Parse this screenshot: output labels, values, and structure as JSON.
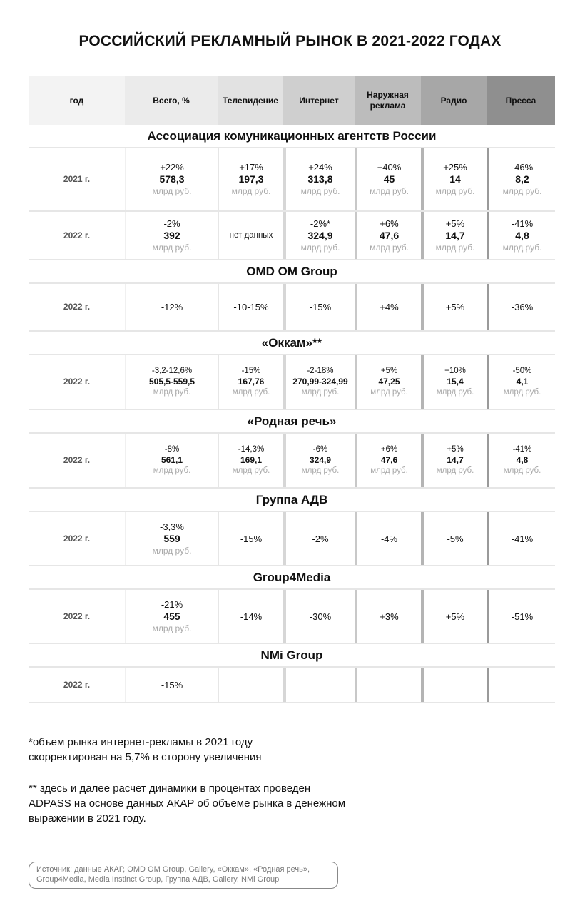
{
  "title": "РОССИЙСКИЙ РЕКЛАМНЫЙ РЫНОК В 2021-2022 ГОДАХ",
  "header": [
    "год",
    "Всего, %",
    "Телевидение",
    "Интернет",
    "Наружная реклама",
    "Радио",
    "Пресса"
  ],
  "header_colors": [
    "#f3f3f3",
    "#ebebeb",
    "#e2e2e2",
    "#cfcfcf",
    "#bcbcbc",
    "#a7a7a7",
    "#8f8f8f"
  ],
  "unit": "млрд руб.",
  "sections": [
    {
      "name": "Ассоциация комуникационных агентств России",
      "rows": [
        {
          "year": "2021 г.",
          "cells": [
            [
              "+22%",
              "578,3",
              true
            ],
            [
              "+17%",
              "197,3",
              true
            ],
            [
              "+24%",
              "313,8",
              true
            ],
            [
              "+40%",
              "45",
              true
            ],
            [
              "+25%",
              "14",
              true
            ],
            [
              "-46%",
              "8,2",
              true
            ]
          ]
        },
        {
          "year": "2022 г.",
          "cells": [
            [
              "-2%",
              "392",
              true
            ],
            [
              "нет данных",
              "",
              false
            ],
            [
              "-2%*",
              "324,9",
              true
            ],
            [
              "+6%",
              "47,6",
              true
            ],
            [
              "+5%",
              "14,7",
              true
            ],
            [
              "-41%",
              "4,8",
              true
            ]
          ]
        }
      ]
    },
    {
      "name": "OMD OM Group",
      "rows": [
        {
          "year": "2022 г.",
          "cells": [
            [
              "-12%",
              "",
              false
            ],
            [
              "-10-15%",
              "",
              false
            ],
            [
              "-15%",
              "",
              false
            ],
            [
              "+4%",
              "",
              false
            ],
            [
              "+5%",
              "",
              false
            ],
            [
              "-36%",
              "",
              false
            ]
          ]
        }
      ]
    },
    {
      "name": "«Оккам»**",
      "small": true,
      "rows": [
        {
          "year": "2022 г.",
          "cells": [
            [
              "-3,2-12,6%",
              "505,5-559,5",
              true
            ],
            [
              "-15%",
              "167,76",
              true
            ],
            [
              "-2-18%",
              "270,99-324,99",
              true
            ],
            [
              "+5%",
              "47,25",
              true
            ],
            [
              "+10%",
              "15,4",
              true
            ],
            [
              "-50%",
              "4,1",
              true
            ]
          ]
        }
      ]
    },
    {
      "name": "«Родная речь»",
      "small": true,
      "rows": [
        {
          "year": "2022 г.",
          "cells": [
            [
              "-8%",
              "561,1",
              true
            ],
            [
              "-14,3%",
              "169,1",
              true
            ],
            [
              "-6%",
              "324,9",
              true
            ],
            [
              "+6%",
              "47,6",
              true
            ],
            [
              "+5%",
              "14,7",
              true
            ],
            [
              "-41%",
              "4,8",
              true
            ]
          ]
        }
      ]
    },
    {
      "name": "Группа АДВ",
      "rows": [
        {
          "year": "2022 г.",
          "cells": [
            [
              "-3,3%",
              "559",
              true
            ],
            [
              "-15%",
              "",
              false
            ],
            [
              "-2%",
              "",
              false
            ],
            [
              "-4%",
              "",
              false
            ],
            [
              "-5%",
              "",
              false
            ],
            [
              "-41%",
              "",
              false
            ]
          ]
        }
      ]
    },
    {
      "name": "Group4Media",
      "rows": [
        {
          "year": "2022 г.",
          "cells": [
            [
              "-21%",
              "455",
              true
            ],
            [
              "-14%",
              "",
              false
            ],
            [
              "-30%",
              "",
              false
            ],
            [
              "+3%",
              "",
              false
            ],
            [
              "+5%",
              "",
              false
            ],
            [
              "-51%",
              "",
              false
            ]
          ]
        }
      ]
    },
    {
      "name": "NMi Group",
      "rows": [
        {
          "year": "2022 г.",
          "cells": [
            [
              "-15%",
              "",
              false
            ],
            [
              "",
              "",
              false
            ],
            [
              "",
              "",
              false
            ],
            [
              "",
              "",
              false
            ],
            [
              "",
              "",
              false
            ],
            [
              "",
              "",
              false
            ]
          ]
        }
      ]
    }
  ],
  "notes": [
    "*объем рынка интернет-рекламы в 2021 году скорректирован на 5,7% в сторону увеличения",
    "** здесь и далее расчет динамики в процентах проведен ADPASS на основе данных АКАР об объеме рынка в денежном выражении в 2021 году."
  ],
  "source": "Источник: данные АКАР, OMD OM Group, Gallery, «Оккам», «Родная речь», Group4Media, Media Instinct Group, Группа АДВ, Gallery, NMi Group"
}
